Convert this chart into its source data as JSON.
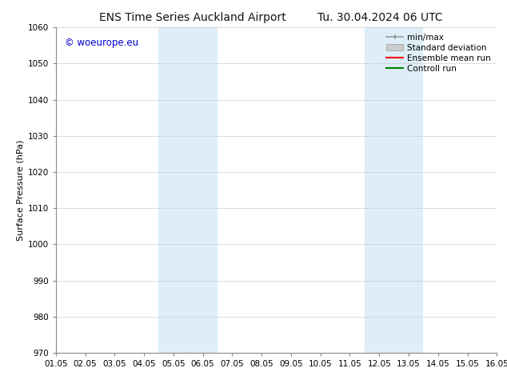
{
  "title_left": "ENS Time Series Auckland Airport",
  "title_right": "Tu. 30.04.2024 06 UTC",
  "ylabel": "Surface Pressure (hPa)",
  "xlabel": "",
  "ylim": [
    970,
    1060
  ],
  "yticks": [
    970,
    980,
    990,
    1000,
    1010,
    1020,
    1030,
    1040,
    1050,
    1060
  ],
  "xtick_labels": [
    "01.05",
    "02.05",
    "03.05",
    "04.05",
    "05.05",
    "06.05",
    "07.05",
    "08.05",
    "09.05",
    "10.05",
    "11.05",
    "12.05",
    "13.05",
    "14.05",
    "15.05",
    "16.05"
  ],
  "xlim": [
    0,
    15
  ],
  "background_color": "#ffffff",
  "plot_bg_color": "#ffffff",
  "shaded_regions": [
    {
      "x_start": 3.5,
      "x_end": 5.5,
      "color": "#ddeef8"
    },
    {
      "x_start": 10.5,
      "x_end": 12.5,
      "color": "#ddeef8"
    }
  ],
  "watermark_text": "© woeurope.eu",
  "watermark_color": "#0000cc",
  "legend_items": [
    {
      "label": "min/max",
      "color": "#999999",
      "style": "line_with_caps"
    },
    {
      "label": "Standard deviation",
      "color": "#cccccc",
      "style": "filled_rect"
    },
    {
      "label": "Ensemble mean run",
      "color": "#ff0000",
      "style": "line"
    },
    {
      "label": "Controll run",
      "color": "#008000",
      "style": "line"
    }
  ],
  "title_fontsize": 10,
  "axis_label_fontsize": 8,
  "tick_fontsize": 7.5,
  "legend_fontsize": 7.5,
  "watermark_fontsize": 8.5
}
